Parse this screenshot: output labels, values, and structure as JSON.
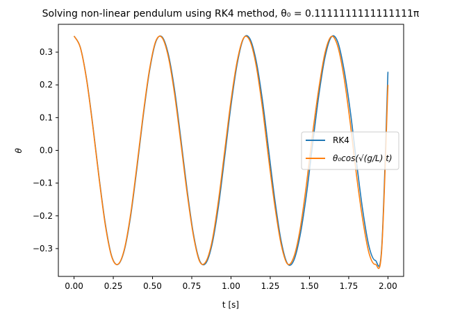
{
  "chart_data": {
    "type": "line",
    "title": "Solving non-linear pendulum using RK4 method, θ₀ = 0.1111111111111111π",
    "xlabel": "t [s]",
    "ylabel": "θ",
    "xlim": [
      -0.1,
      2.1
    ],
    "ylim": [
      -0.385,
      0.385
    ],
    "xticks": [
      0.0,
      0.25,
      0.5,
      0.75,
      1.0,
      1.25,
      1.5,
      1.75,
      2.0
    ],
    "xtick_labels": [
      "0.00",
      "0.25",
      "0.50",
      "0.75",
      "1.00",
      "1.25",
      "1.50",
      "1.75",
      "2.00"
    ],
    "yticks": [
      -0.3,
      -0.2,
      -0.1,
      0.0,
      0.1,
      0.2,
      0.3
    ],
    "ytick_labels": [
      "−0.3",
      "−0.2",
      "−0.1",
      "0.0",
      "0.1",
      "0.2",
      "0.3"
    ],
    "grid": false,
    "legend_position": "center-right",
    "series": [
      {
        "name": "RK4",
        "color": "#1f77b4",
        "x": [
          0.0,
          0.04,
          0.08,
          0.12,
          0.16,
          0.2,
          0.24,
          0.28,
          0.32,
          0.36,
          0.4,
          0.44,
          0.48,
          0.52,
          0.56,
          0.6,
          0.64,
          0.68,
          0.72,
          0.76,
          0.8,
          0.84,
          0.88,
          0.92,
          0.96,
          1.0,
          1.04,
          1.08,
          1.12,
          1.16,
          1.2,
          1.24,
          1.28,
          1.32,
          1.36,
          1.4,
          1.44,
          1.48,
          1.52,
          1.56,
          1.6,
          1.64,
          1.68,
          1.72,
          1.76,
          1.8,
          1.84,
          1.88,
          1.92,
          1.96,
          2.0
        ],
        "y": [
          0.3491,
          0.3146,
          0.2174,
          0.0746,
          -0.0845,
          -0.2267,
          -0.3236,
          -0.3483,
          -0.3056,
          -0.2024,
          -0.0564,
          0.1022,
          0.2402,
          0.3302,
          0.347,
          0.295,
          0.1862,
          0.0369,
          -0.12,
          -0.2539,
          -0.3365,
          -0.3444,
          -0.2855,
          -0.1708,
          -0.019,
          0.1375,
          0.266,
          0.342,
          0.3411,
          0.274,
          0.154,
          0.0001,
          -0.1536,
          -0.2783,
          -0.3462,
          -0.3363,
          -0.2607,
          -0.1374,
          0.0188,
          0.17,
          0.287,
          0.3469,
          0.3313,
          0.247,
          0.1196,
          -0.0376,
          -0.1854,
          -0.2949,
          -0.3361,
          -0.299,
          0.24
        ]
      },
      {
        "name": "θ₀cos(√(g/L) t)",
        "color": "#ff7f0e",
        "x": [
          0.0,
          0.04,
          0.08,
          0.12,
          0.16,
          0.2,
          0.24,
          0.28,
          0.32,
          0.36,
          0.4,
          0.44,
          0.48,
          0.52,
          0.56,
          0.6,
          0.64,
          0.68,
          0.72,
          0.76,
          0.8,
          0.84,
          0.88,
          0.92,
          0.96,
          1.0,
          1.04,
          1.08,
          1.12,
          1.16,
          1.2,
          1.24,
          1.28,
          1.32,
          1.36,
          1.4,
          1.44,
          1.48,
          1.52,
          1.56,
          1.6,
          1.64,
          1.68,
          1.72,
          1.76,
          1.8,
          1.84,
          1.88,
          1.92,
          1.96,
          2.0
        ],
        "y": [
          0.3491,
          0.3139,
          0.2152,
          0.0712,
          -0.0879,
          -0.2306,
          -0.3251,
          -0.3478,
          -0.3029,
          -0.1965,
          -0.0492,
          0.1082,
          0.245,
          0.3328,
          0.3448,
          0.2875,
          0.174,
          0.025,
          -0.129,
          -0.259,
          -0.339,
          -0.34,
          -0.276,
          -0.154,
          -0.001,
          0.152,
          0.274,
          0.343,
          0.335,
          0.26,
          0.131,
          -0.026,
          -0.172,
          -0.288,
          -0.347,
          -0.326,
          -0.242,
          -0.107,
          0.051,
          0.19,
          0.3,
          0.348,
          0.318,
          0.223,
          0.083,
          -0.077,
          -0.214,
          -0.315,
          -0.348,
          -0.306,
          0.2
        ]
      }
    ]
  }
}
